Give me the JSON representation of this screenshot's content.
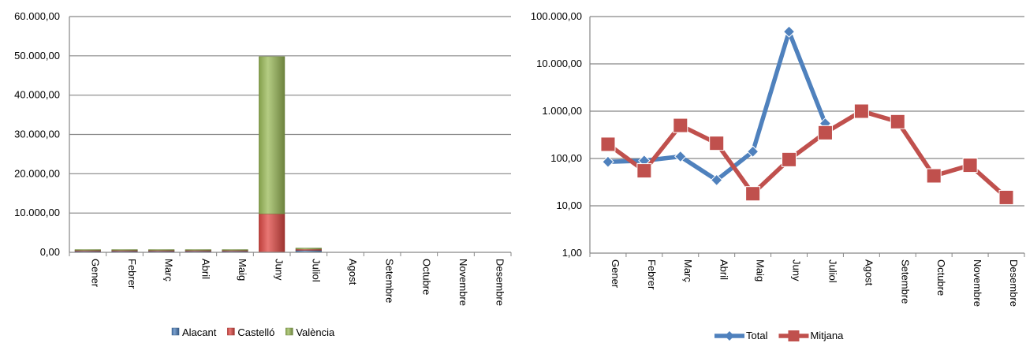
{
  "chart_data": [
    {
      "type": "bar",
      "stacked": true,
      "categories": [
        "Gener",
        "Febrer",
        "Març",
        "Abril",
        "Maig",
        "Juny",
        "Juliol",
        "Agost",
        "Setembre",
        "Octubre",
        "Novembre",
        "Desembre"
      ],
      "series": [
        {
          "name": "Alacant",
          "color": "#4f81bd",
          "values": [
            300,
            300,
            300,
            300,
            300,
            0,
            500,
            null,
            null,
            null,
            null,
            null
          ]
        },
        {
          "name": "Castelló",
          "color": "#e04a45",
          "values": [
            200,
            200,
            200,
            200,
            200,
            9800,
            300,
            null,
            null,
            null,
            null,
            null
          ]
        },
        {
          "name": "València",
          "color": "#9bbb59",
          "values": [
            200,
            200,
            200,
            200,
            200,
            40000,
            300,
            null,
            null,
            null,
            null,
            null
          ]
        }
      ],
      "yticks": [
        "0,00",
        "10.000,00",
        "20.000,00",
        "30.000,00",
        "40.000,00",
        "50.000,00",
        "60.000,00"
      ],
      "ylim": [
        0,
        60000
      ],
      "grid": true,
      "legend": "bottom"
    },
    {
      "type": "line",
      "log_scale_y": true,
      "categories": [
        "Gener",
        "Febrer",
        "Març",
        "Abril",
        "Maig",
        "Juny",
        "Juliol",
        "Agost",
        "Setembre",
        "Octubre",
        "Novembre",
        "Desembre"
      ],
      "series": [
        {
          "name": "Total",
          "color": "#4f81bd",
          "marker": "diamond",
          "values": [
            85,
            90,
            110,
            35,
            140,
            48000,
            550,
            null,
            null,
            null,
            null,
            null
          ]
        },
        {
          "name": "Mitjana",
          "color": "#c0504d",
          "marker": "square",
          "values": [
            200,
            55,
            500,
            210,
            18,
            95,
            350,
            1000,
            600,
            43,
            72,
            15
          ]
        }
      ],
      "yticks": [
        "1,00",
        "10,00",
        "100,00",
        "1.000,00",
        "10.000,00",
        "100.000,00"
      ],
      "ylim": [
        1,
        100000
      ],
      "grid": true,
      "legend": "bottom"
    }
  ]
}
